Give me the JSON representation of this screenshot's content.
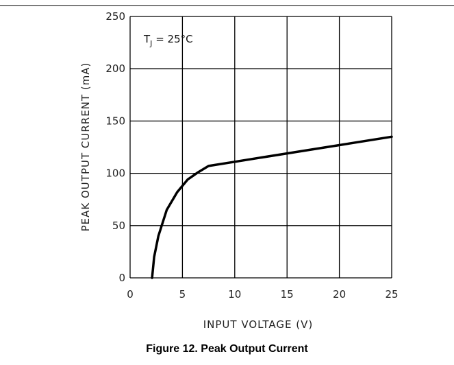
{
  "caption": "Figure 12. Peak Output Current",
  "colors": {
    "grid": "#000000",
    "curve": "#000000",
    "text": "#222222"
  },
  "chart_data": {
    "type": "line",
    "title": "",
    "xlabel": "INPUT VOLTAGE (V)",
    "ylabel": "PEAK OUTPUT CURRENT (mA)",
    "xlim": [
      0,
      25
    ],
    "ylim": [
      0,
      250
    ],
    "x_ticks": [
      "0",
      "5",
      "10",
      "15",
      "20",
      "25"
    ],
    "y_ticks": [
      "0",
      "50",
      "100",
      "150",
      "200",
      "250"
    ],
    "grid": true,
    "annotation": {
      "main": "T",
      "sub": "J",
      "rest": " = 25°C"
    },
    "series": [
      {
        "x": [
          2.1,
          2.3,
          2.7,
          3.5,
          4.5,
          5.5,
          6.5,
          7.5,
          10,
          15,
          20,
          25
        ],
        "y": [
          0,
          20,
          40,
          65,
          82,
          94,
          101,
          107,
          111,
          119,
          127,
          135
        ]
      }
    ]
  }
}
